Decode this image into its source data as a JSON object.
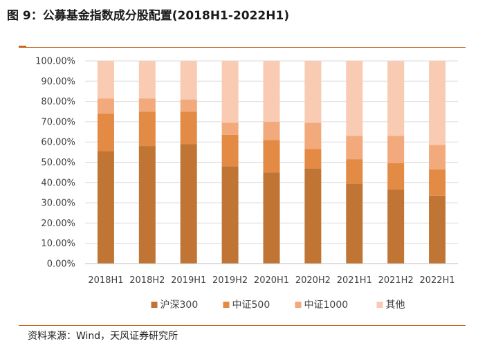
{
  "figure": {
    "title": "图 9：公募基金指数成分股配置(2018H1-2022H1)",
    "source": "资料来源：Wind，天风证券研究所"
  },
  "colors": {
    "accent_rule": "#c8641e",
    "gridline": "#d9d9d9"
  },
  "chart_data": {
    "type": "bar",
    "stacked": true,
    "percent": true,
    "categories": [
      "2018H1",
      "2018H2",
      "2019H1",
      "2019H2",
      "2020H1",
      "2020H2",
      "2021H1",
      "2021H2",
      "2022H1"
    ],
    "ylim": [
      0,
      100
    ],
    "yticks": [
      "0.00%",
      "10.00%",
      "20.00%",
      "30.00%",
      "40.00%",
      "50.00%",
      "60.00%",
      "70.00%",
      "80.00%",
      "90.00%",
      "100.00%"
    ],
    "grid": true,
    "legend_position": "bottom",
    "series": [
      {
        "name": "沪深300",
        "color": "#c07535",
        "values": [
          55.5,
          58.0,
          59.0,
          48.0,
          45.0,
          47.0,
          39.5,
          36.5,
          33.5
        ]
      },
      {
        "name": "中证500",
        "color": "#e38a45",
        "values": [
          18.5,
          17.0,
          16.0,
          15.5,
          16.0,
          9.5,
          12.0,
          13.0,
          13.0
        ]
      },
      {
        "name": "中证1000",
        "color": "#f2a97c",
        "values": [
          7.5,
          6.5,
          6.0,
          6.0,
          9.0,
          13.0,
          11.5,
          13.5,
          12.0
        ]
      },
      {
        "name": "其他",
        "color": "#f8cbb2",
        "values": [
          18.5,
          18.5,
          19.0,
          30.5,
          30.0,
          30.5,
          37.0,
          37.0,
          41.5
        ]
      }
    ]
  }
}
